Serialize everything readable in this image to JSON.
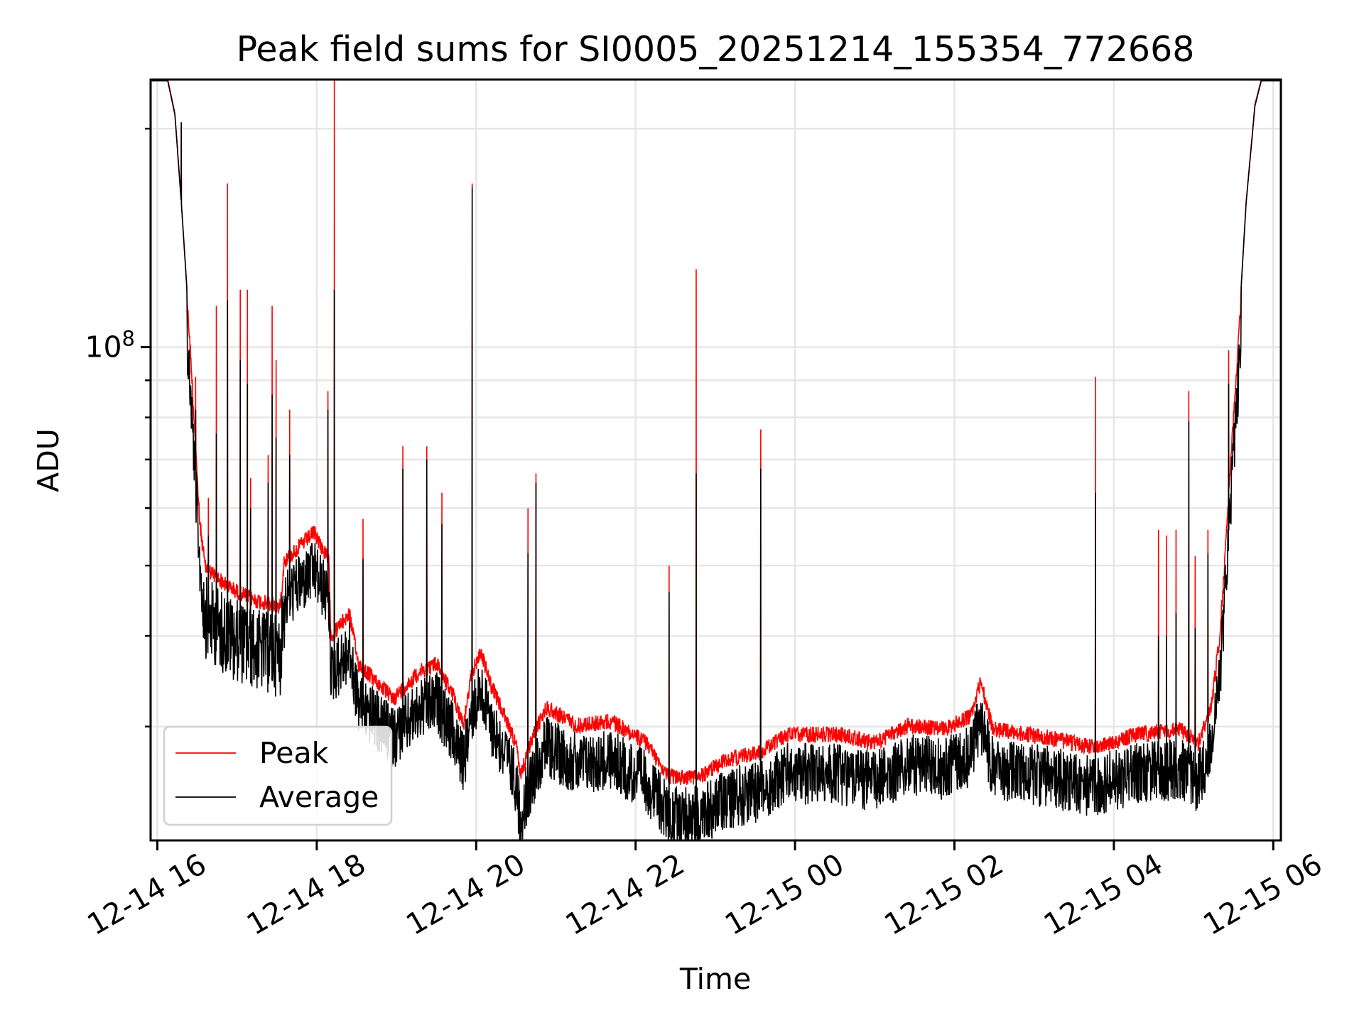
{
  "chart_data": {
    "type": "line",
    "title": "Peak field sums for SI0005_20251214_155354_772668",
    "xlabel": "Time",
    "ylabel": "ADU",
    "yscale": "log",
    "ylim": [
      20900000.0,
      234000000.0
    ],
    "xlim_hours_from_12_14_00": [
      15.93,
      30.1
    ],
    "x_ticks": [
      {
        "hour": 16,
        "label": "12-14 16"
      },
      {
        "hour": 18,
        "label": "12-14 18"
      },
      {
        "hour": 20,
        "label": "12-14 20"
      },
      {
        "hour": 22,
        "label": "12-14 22"
      },
      {
        "hour": 24,
        "label": "12-15 00"
      },
      {
        "hour": 26,
        "label": "12-15 02"
      },
      {
        "hour": 28,
        "label": "12-15 04"
      },
      {
        "hour": 30,
        "label": "12-15 06"
      }
    ],
    "y_major_ticks": [
      {
        "value": 100000000.0,
        "base": "10",
        "exp": "8"
      }
    ],
    "y_minor_ticks": [
      30000000.0,
      40000000.0,
      50000000.0,
      60000000.0,
      70000000.0,
      80000000.0,
      90000000.0,
      200000000.0
    ],
    "grid": true,
    "legend": {
      "placement": "lower-left",
      "entries": [
        {
          "name": "Peak",
          "color": "#ff0000"
        },
        {
          "name": "Average",
          "color": "#000000"
        }
      ]
    },
    "series": [
      {
        "name": "Peak",
        "color": "#ff0000"
      },
      {
        "name": "Average",
        "color": "#000000"
      }
    ],
    "baseline_peak": [
      [
        15.95,
        234000000.0
      ],
      [
        16.13,
        234000000.0
      ],
      [
        16.22,
        210000000.0
      ],
      [
        16.3,
        159000000.0
      ],
      [
        16.35,
        131000000.0
      ],
      [
        16.42,
        99000000.0
      ],
      [
        16.46,
        82000000.0
      ],
      [
        16.53,
        59000000.0
      ],
      [
        16.6,
        51000000.0
      ],
      [
        16.88,
        48000000.0
      ],
      [
        17.21,
        46000000.0
      ],
      [
        17.54,
        45000000.0
      ],
      [
        17.59,
        52000000.0
      ],
      [
        17.97,
        57000000.0
      ],
      [
        18.15,
        52000000.0
      ],
      [
        18.18,
        41000000.0
      ],
      [
        18.41,
        44000000.0
      ],
      [
        18.52,
        37600000.0
      ],
      [
        18.96,
        33600000.0
      ],
      [
        19.29,
        36600000.0
      ],
      [
        19.51,
        37600000.0
      ],
      [
        19.73,
        33600000.0
      ],
      [
        19.84,
        30900000.0
      ],
      [
        19.95,
        36600000.0
      ],
      [
        20.06,
        39000000.0
      ],
      [
        20.17,
        35500000.0
      ],
      [
        20.5,
        29200000.0
      ],
      [
        20.55,
        26200000.0
      ],
      [
        20.72,
        30000000.0
      ],
      [
        20.88,
        32700000.0
      ],
      [
        21.27,
        30900000.0
      ],
      [
        21.7,
        31300000.0
      ],
      [
        22.14,
        29200000.0
      ],
      [
        22.42,
        26200000.0
      ],
      [
        22.8,
        26200000.0
      ],
      [
        23.13,
        27700000.0
      ],
      [
        23.57,
        28400000.0
      ],
      [
        23.9,
        30000000.0
      ],
      [
        24.56,
        30000000.0
      ],
      [
        25.0,
        29200000.0
      ],
      [
        25.43,
        30900000.0
      ],
      [
        25.87,
        30500000.0
      ],
      [
        26.2,
        31800000.0
      ],
      [
        26.33,
        35500000.0
      ],
      [
        26.48,
        30500000.0
      ],
      [
        27.19,
        29700000.0
      ],
      [
        27.74,
        28800000.0
      ],
      [
        28.29,
        30000000.0
      ],
      [
        28.84,
        30500000.0
      ],
      [
        29.06,
        29200000.0
      ],
      [
        29.22,
        32700000.0
      ],
      [
        29.33,
        41000000.0
      ],
      [
        29.38,
        49600000.0
      ],
      [
        29.44,
        64000000.0
      ],
      [
        29.55,
        99000000.0
      ],
      [
        29.66,
        159000000.0
      ],
      [
        29.77,
        216000000.0
      ],
      [
        29.85,
        234000000.0
      ],
      [
        30.1,
        234000000.0
      ]
    ],
    "spikes_hour_peak_average": [
      [
        16.3,
        204000000.0,
        204000000.0
      ],
      [
        16.48,
        91000000.0,
        82000000.0
      ],
      [
        16.64,
        62000000.0,
        55000000.0
      ],
      [
        16.74,
        114000000.0,
        76000000.0
      ],
      [
        16.88,
        168000000.0,
        116000000.0
      ],
      [
        17.04,
        120000000.0,
        96000000.0
      ],
      [
        17.13,
        120000000.0,
        89000000.0
      ],
      [
        17.17,
        66000000.0,
        60000000.0
      ],
      [
        17.39,
        71000000.0,
        65000000.0
      ],
      [
        17.44,
        114000000.0,
        86000000.0
      ],
      [
        17.49,
        96000000.0,
        75000000.0
      ],
      [
        17.66,
        82000000.0,
        71000000.0
      ],
      [
        18.14,
        87000000.0,
        82000000.0
      ],
      [
        18.22,
        234000000.0,
        120000000.0
      ],
      [
        18.58,
        58000000.0,
        51000000.0
      ],
      [
        19.08,
        73000000.0,
        68000000.0
      ],
      [
        19.38,
        73000000.0,
        70000000.0
      ],
      [
        19.57,
        63000000.0,
        57000000.0
      ],
      [
        19.95,
        168000000.0,
        166000000.0
      ],
      [
        20.65,
        60000000.0,
        52000000.0
      ],
      [
        20.75,
        67000000.0,
        65000000.0
      ],
      [
        22.42,
        50000000.0,
        46000000.0
      ],
      [
        22.76,
        128000000.0,
        67000000.0
      ],
      [
        23.57,
        77000000.0,
        68000000.0
      ],
      [
        27.77,
        91000000.0,
        63000000.0
      ],
      [
        28.56,
        56000000.0,
        40000000.0
      ],
      [
        28.66,
        55000000.0,
        40000000.0
      ],
      [
        28.78,
        56000000.0,
        43000000.0
      ],
      [
        28.94,
        87000000.0,
        79000000.0
      ],
      [
        29.02,
        51500000.0,
        41000000.0
      ],
      [
        29.18,
        56000000.0,
        52000000.0
      ],
      [
        29.44,
        99000000.0,
        89000000.0
      ]
    ]
  }
}
